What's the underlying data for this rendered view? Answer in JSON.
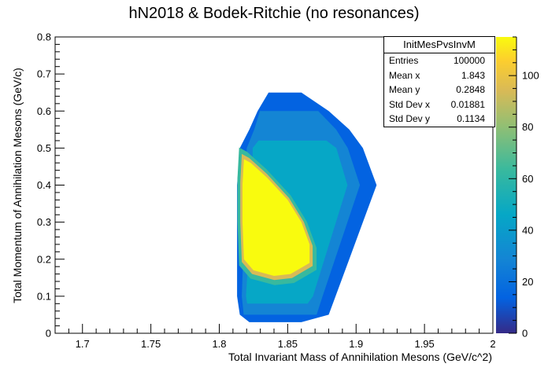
{
  "chart_data": {
    "type": "heatmap",
    "title": "hN2018 & Bodek-Ritchie (no resonances)",
    "xlabel": "Total Invariant Mass of Annihilation Mesons (GeV/c^2)",
    "ylabel": "Total Momentum of Annihilation Mesons (GeV/c)",
    "xlim": [
      1.68,
      2.0
    ],
    "ylim": [
      0,
      0.8
    ],
    "x_ticks": [
      "1.7",
      "1.75",
      "1.8",
      "1.85",
      "1.9",
      "1.95",
      "2"
    ],
    "y_ticks": [
      "0",
      "0.1",
      "0.2",
      "0.3",
      "0.4",
      "0.5",
      "0.6",
      "0.7",
      "0.8"
    ],
    "z_range": [
      0,
      115
    ],
    "colorbar_ticks": [
      "0",
      "20",
      "40",
      "60",
      "80",
      "100"
    ],
    "colormap": [
      "#352a87",
      "#0363e1",
      "#1485d4",
      "#06a7c6",
      "#38b99e",
      "#92bf73",
      "#d9ba56",
      "#fcce2e",
      "#f9fb0e"
    ],
    "grid": false,
    "regions": {
      "envelope_left": [
        [
          0.05,
          1.815
        ],
        [
          0.1,
          1.813
        ],
        [
          0.2,
          1.813
        ],
        [
          0.3,
          1.813
        ],
        [
          0.4,
          1.813
        ],
        [
          0.5,
          1.815
        ],
        [
          0.55,
          1.822
        ],
        [
          0.6,
          1.828
        ],
        [
          0.65,
          1.836
        ]
      ],
      "envelope_right": [
        [
          0.05,
          1.88
        ],
        [
          0.1,
          1.885
        ],
        [
          0.2,
          1.895
        ],
        [
          0.3,
          1.905
        ],
        [
          0.4,
          1.915
        ],
        [
          0.5,
          1.905
        ],
        [
          0.55,
          1.895
        ],
        [
          0.6,
          1.88
        ],
        [
          0.65,
          1.86
        ]
      ],
      "core": [
        [
          1.818,
          0.47
        ],
        [
          1.823,
          0.46
        ],
        [
          1.835,
          0.42
        ],
        [
          1.85,
          0.36
        ],
        [
          1.86,
          0.3
        ],
        [
          1.866,
          0.24
        ],
        [
          1.866,
          0.19
        ],
        [
          1.852,
          0.16
        ],
        [
          1.84,
          0.155
        ],
        [
          1.825,
          0.17
        ],
        [
          1.818,
          0.2
        ],
        [
          1.817,
          0.3
        ],
        [
          1.817,
          0.4
        ]
      ]
    }
  },
  "stats_box": {
    "name": "InitMesPvsInvM",
    "entries_label": "Entries",
    "entries_value": "100000",
    "mean_x_label": "Mean x",
    "mean_x_value": "1.843",
    "mean_y_label": "Mean y",
    "mean_y_value": "0.2848",
    "std_x_label": "Std Dev x",
    "std_x_value": "0.01881",
    "std_y_label": "Std Dev y",
    "std_y_value": "0.1134"
  }
}
